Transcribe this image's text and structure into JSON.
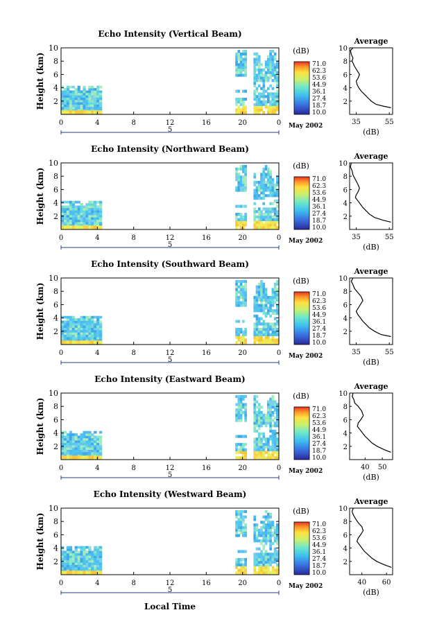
{
  "xlabel": "Local Time",
  "colorbar": {
    "unit": "(dB)",
    "ticks": [
      "71.0",
      "62.3",
      "53.6",
      "44.9",
      "36.1",
      "27.4",
      "18.7",
      "10.0"
    ]
  },
  "chart_data": [
    {
      "type": "heatmap",
      "title": "Echo Intensity (Vertical Beam)",
      "ylabel": "Height (km)",
      "xticks": [
        "0",
        "4",
        "8",
        "12",
        "16",
        "20",
        "0"
      ],
      "yticks": [
        "2",
        "4",
        "6",
        "8",
        "10"
      ],
      "xlim": [
        0,
        24
      ],
      "ylim": [
        0,
        10
      ],
      "date_marker": "5",
      "date_label": "May 2002",
      "avg": {
        "title": "Average",
        "xlabel": "(dB)",
        "xticks": [
          "35",
          "55"
        ],
        "xlim": [
          31,
          57
        ],
        "profile": [
          [
            33,
            10
          ],
          [
            31.5,
            9.6
          ],
          [
            32,
            9
          ],
          [
            33,
            8.5
          ],
          [
            32.5,
            8
          ],
          [
            34,
            7.2
          ],
          [
            35.5,
            6.6
          ],
          [
            37,
            6
          ],
          [
            36,
            5.4
          ],
          [
            35,
            5
          ],
          [
            35.5,
            4.5
          ],
          [
            36.5,
            4
          ],
          [
            38,
            3.5
          ],
          [
            40,
            3
          ],
          [
            42,
            2.5
          ],
          [
            44,
            2
          ],
          [
            47,
            1.5
          ],
          [
            52,
            1.2
          ],
          [
            56,
            1
          ]
        ]
      }
    },
    {
      "type": "heatmap",
      "title": "Echo Intensity (Northward Beam)",
      "ylabel": "Height (km)",
      "xticks": [
        "0",
        "4",
        "8",
        "12",
        "16",
        "20",
        "0"
      ],
      "yticks": [
        "2",
        "4",
        "6",
        "8",
        "10"
      ],
      "xlim": [
        0,
        24
      ],
      "ylim": [
        0,
        10
      ],
      "date_marker": "5",
      "date_label": "May 2002",
      "avg": {
        "title": "Average",
        "xlabel": "(dB)",
        "xticks": [
          "35",
          "55"
        ],
        "xlim": [
          31,
          57
        ],
        "profile": [
          [
            32,
            10
          ],
          [
            31.5,
            9.4
          ],
          [
            32.5,
            8.8
          ],
          [
            33,
            8.2
          ],
          [
            34.5,
            7.5
          ],
          [
            36,
            6.8
          ],
          [
            37,
            6.2
          ],
          [
            36,
            5.6
          ],
          [
            35,
            5.2
          ],
          [
            34.5,
            4.8
          ],
          [
            36,
            4.3
          ],
          [
            37.5,
            3.8
          ],
          [
            39,
            3.3
          ],
          [
            41,
            2.8
          ],
          [
            43,
            2.3
          ],
          [
            46,
            1.8
          ],
          [
            51,
            1.4
          ],
          [
            56,
            1.1
          ]
        ]
      }
    },
    {
      "type": "heatmap",
      "title": "Echo Intensity (Southward Beam)",
      "ylabel": "Height (km)",
      "xticks": [
        "0",
        "4",
        "8",
        "12",
        "16",
        "20",
        "0"
      ],
      "yticks": [
        "2",
        "4",
        "6",
        "8",
        "10"
      ],
      "xlim": [
        0,
        24
      ],
      "ylim": [
        0,
        10
      ],
      "date_marker": "5",
      "date_label": "May 2002",
      "avg": {
        "title": "Average",
        "xlabel": "(dB)",
        "xticks": [
          "35",
          "55"
        ],
        "xlim": [
          31,
          57
        ],
        "profile": [
          [
            33,
            10
          ],
          [
            32,
            9.5
          ],
          [
            33,
            9
          ],
          [
            34,
            8.4
          ],
          [
            36,
            7.8
          ],
          [
            38,
            7.2
          ],
          [
            39,
            6.6
          ],
          [
            37.5,
            6
          ],
          [
            36,
            5.4
          ],
          [
            35,
            5
          ],
          [
            36,
            4.5
          ],
          [
            37.5,
            4
          ],
          [
            39,
            3.5
          ],
          [
            41,
            3
          ],
          [
            43,
            2.5
          ],
          [
            46,
            2
          ],
          [
            50,
            1.5
          ],
          [
            56,
            1.2
          ]
        ]
      }
    },
    {
      "type": "heatmap",
      "title": "Echo Intensity (Eastward Beam)",
      "ylabel": "Height (km)",
      "xticks": [
        "0",
        "4",
        "8",
        "12",
        "16",
        "20",
        "0"
      ],
      "yticks": [
        "2",
        "4",
        "6",
        "8",
        "10"
      ],
      "xlim": [
        0,
        24
      ],
      "ylim": [
        0,
        10
      ],
      "date_marker": "5",
      "date_label": "May 2002",
      "avg": {
        "title": "Average",
        "xlabel": "(dB)",
        "xticks": [
          "40",
          "50"
        ],
        "xlim": [
          31,
          56
        ],
        "profile": [
          [
            33,
            10
          ],
          [
            32.5,
            9.5
          ],
          [
            33.5,
            9
          ],
          [
            34,
            8.5
          ],
          [
            36,
            8
          ],
          [
            38,
            7.3
          ],
          [
            39,
            6.6
          ],
          [
            37.5,
            6
          ],
          [
            36,
            5.5
          ],
          [
            35.5,
            5
          ],
          [
            37,
            4.5
          ],
          [
            38.5,
            4
          ],
          [
            40,
            3.5
          ],
          [
            42,
            3
          ],
          [
            44,
            2.5
          ],
          [
            47,
            2
          ],
          [
            51,
            1.5
          ],
          [
            55,
            1.1
          ]
        ]
      }
    },
    {
      "type": "heatmap",
      "title": "Echo Intensity (Westward Beam)",
      "ylabel": "Height (km)",
      "xticks": [
        "0",
        "4",
        "8",
        "12",
        "16",
        "20",
        "0"
      ],
      "yticks": [
        "2",
        "4",
        "6",
        "8",
        "10"
      ],
      "xlim": [
        0,
        24
      ],
      "ylim": [
        0,
        10
      ],
      "date_marker": "5",
      "date_label": "May 2002",
      "avg": {
        "title": "Average",
        "xlabel": "(dB)",
        "xticks": [
          "40",
          "60"
        ],
        "xlim": [
          30,
          65
        ],
        "profile": [
          [
            33,
            10
          ],
          [
            32,
            9.5
          ],
          [
            33,
            9
          ],
          [
            34.5,
            8.5
          ],
          [
            37,
            7.8
          ],
          [
            40,
            7.2
          ],
          [
            41,
            6.6
          ],
          [
            39,
            6
          ],
          [
            37,
            5.5
          ],
          [
            36,
            5
          ],
          [
            38,
            4.5
          ],
          [
            40,
            4
          ],
          [
            42,
            3.5
          ],
          [
            45,
            3
          ],
          [
            48,
            2.5
          ],
          [
            52,
            2
          ],
          [
            58,
            1.5
          ],
          [
            64,
            1.1
          ]
        ]
      }
    }
  ]
}
